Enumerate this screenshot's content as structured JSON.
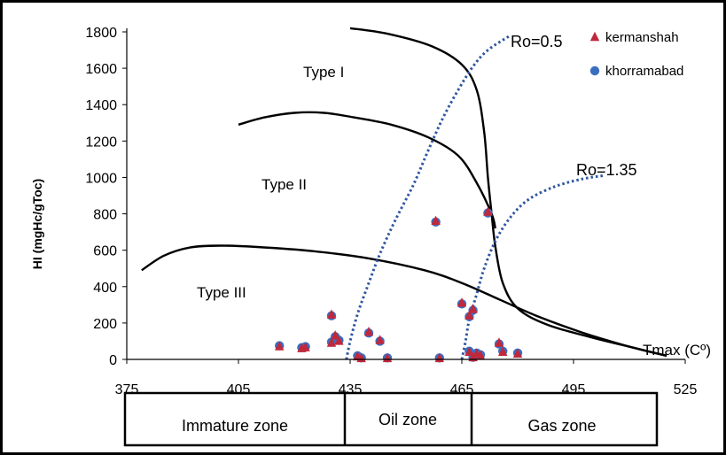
{
  "chart_data": {
    "type": "scatter",
    "ylabel": "HI (mgHc/gToc)",
    "xlabel": "Tmax (Cº)",
    "xlim": [
      375,
      525
    ],
    "ylim": [
      0,
      1800
    ],
    "xticks": [
      375,
      405,
      435,
      465,
      495,
      525
    ],
    "yticks": [
      0,
      200,
      400,
      600,
      800,
      1000,
      1200,
      1400,
      1600,
      1800
    ],
    "grid": false,
    "legend_placement": "top-right",
    "series": [
      {
        "name": "kermanshah",
        "marker": "triangle",
        "color": "#c0283c",
        "points": [
          [
            416,
            70
          ],
          [
            422,
            60
          ],
          [
            423,
            65
          ],
          [
            430,
            245
          ],
          [
            430,
            90
          ],
          [
            431,
            130
          ],
          [
            432,
            100
          ],
          [
            437,
            15
          ],
          [
            438,
            5
          ],
          [
            440,
            150
          ],
          [
            443,
            105
          ],
          [
            445,
            5
          ],
          [
            458,
            760
          ],
          [
            459,
            5
          ],
          [
            465,
            310
          ],
          [
            467,
            240
          ],
          [
            467,
            40
          ],
          [
            468,
            275
          ],
          [
            468,
            10
          ],
          [
            469,
            30
          ],
          [
            470,
            20
          ],
          [
            472,
            810
          ],
          [
            475,
            90
          ],
          [
            476,
            40
          ],
          [
            480,
            30
          ]
        ]
      },
      {
        "name": "khorramabad",
        "marker": "circle",
        "color": "#3a6fc0",
        "points": [
          [
            416,
            75
          ],
          [
            422,
            65
          ],
          [
            423,
            70
          ],
          [
            430,
            240
          ],
          [
            430,
            95
          ],
          [
            431,
            125
          ],
          [
            432,
            105
          ],
          [
            437,
            20
          ],
          [
            438,
            8
          ],
          [
            440,
            145
          ],
          [
            443,
            100
          ],
          [
            445,
            8
          ],
          [
            458,
            755
          ],
          [
            459,
            8
          ],
          [
            465,
            305
          ],
          [
            467,
            235
          ],
          [
            467,
            45
          ],
          [
            468,
            270
          ],
          [
            468,
            12
          ],
          [
            469,
            35
          ],
          [
            470,
            25
          ],
          [
            472,
            805
          ],
          [
            475,
            85
          ],
          [
            476,
            45
          ],
          [
            480,
            35
          ]
        ]
      }
    ],
    "boundary_curves": [
      {
        "points": [
          [
            435,
            1820
          ],
          [
            445,
            1790
          ],
          [
            457,
            1720
          ],
          [
            465,
            1620
          ],
          [
            469,
            1480
          ],
          [
            471,
            1250
          ],
          [
            472,
            1000
          ],
          [
            473,
            800
          ],
          [
            474,
            620
          ],
          [
            476,
            420
          ],
          [
            480,
            280
          ],
          [
            488,
            190
          ],
          [
            500,
            120
          ],
          [
            512,
            60
          ],
          [
            520,
            20
          ]
        ]
      },
      {
        "points": [
          [
            405,
            1290
          ],
          [
            412,
            1330
          ],
          [
            420,
            1355
          ],
          [
            428,
            1355
          ],
          [
            436,
            1330
          ],
          [
            446,
            1290
          ],
          [
            456,
            1220
          ],
          [
            464,
            1120
          ],
          [
            469,
            970
          ],
          [
            473,
            800
          ],
          [
            474,
            720
          ]
        ]
      },
      {
        "points": [
          [
            379,
            490
          ],
          [
            385,
            570
          ],
          [
            392,
            615
          ],
          [
            400,
            625
          ],
          [
            410,
            618
          ],
          [
            425,
            595
          ],
          [
            440,
            555
          ],
          [
            455,
            490
          ],
          [
            465,
            420
          ],
          [
            475,
            330
          ],
          [
            485,
            240
          ],
          [
            497,
            150
          ],
          [
            510,
            70
          ],
          [
            520,
            20
          ]
        ]
      }
    ],
    "iso_reflectance_lines": [
      {
        "label": "Ro=0.5",
        "points": [
          [
            434,
            0
          ],
          [
            435,
            100
          ],
          [
            437,
            250
          ],
          [
            440,
            420
          ],
          [
            443,
            580
          ],
          [
            447,
            760
          ],
          [
            452,
            960
          ],
          [
            456,
            1150
          ],
          [
            460,
            1330
          ],
          [
            464,
            1480
          ],
          [
            468,
            1610
          ],
          [
            472,
            1700
          ],
          [
            478,
            1780
          ]
        ]
      },
      {
        "label": "Ro=1.35",
        "points": [
          [
            465,
            0
          ],
          [
            466,
            100
          ],
          [
            467,
            220
          ],
          [
            469,
            360
          ],
          [
            471,
            500
          ],
          [
            474,
            650
          ],
          [
            478,
            780
          ],
          [
            483,
            880
          ],
          [
            490,
            950
          ],
          [
            497,
            990
          ],
          [
            503,
            1010
          ]
        ]
      }
    ],
    "region_labels": [
      "Type I",
      "Type II",
      "Type III"
    ],
    "zones": [
      {
        "label": "Immature zone",
        "from": 375,
        "to": 435
      },
      {
        "label": "Oil zone",
        "from": 435,
        "to": 465
      },
      {
        "label": "Gas zone",
        "from": 465,
        "to": 525
      }
    ]
  }
}
